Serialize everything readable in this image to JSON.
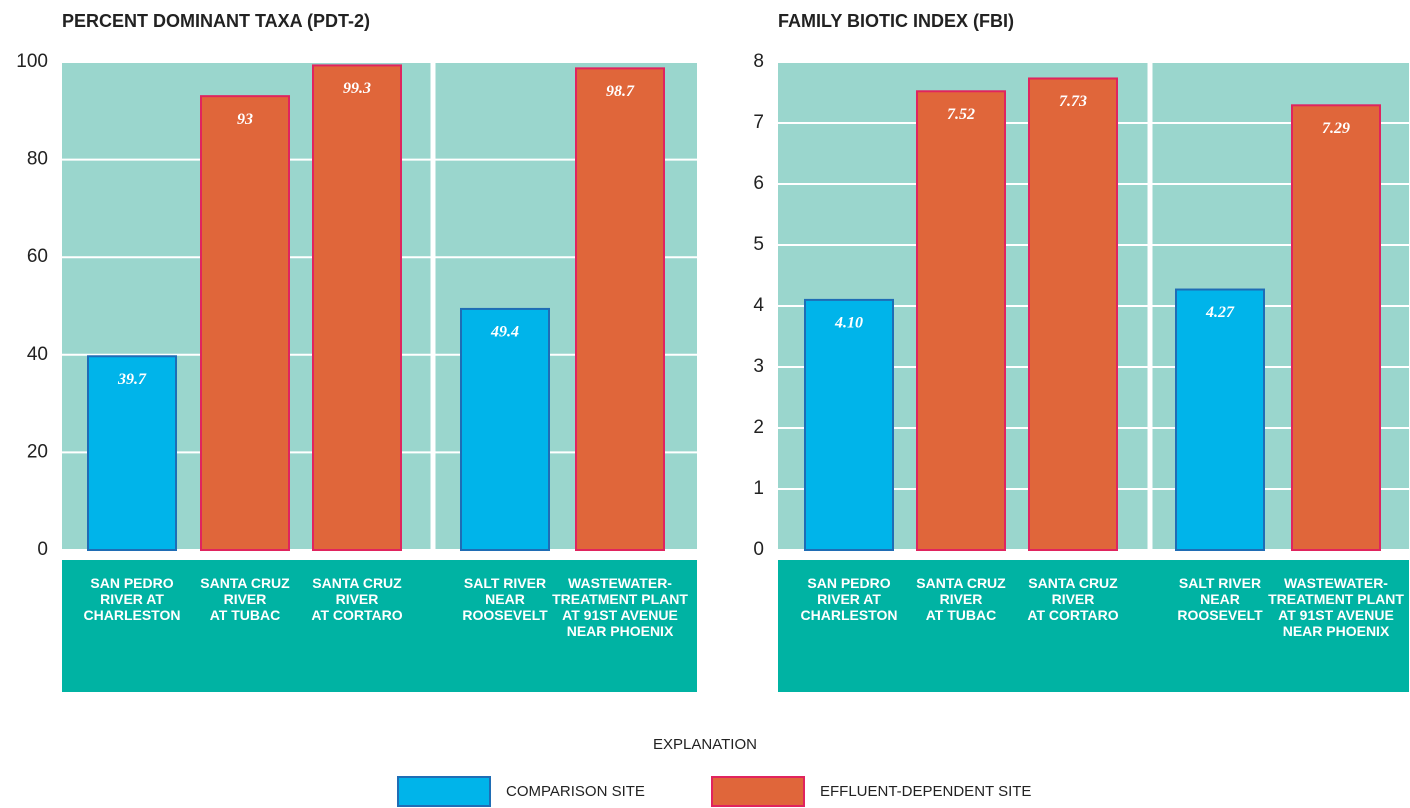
{
  "chart_data": [
    {
      "type": "bar",
      "title": "PERCENT DOMINANT TAXA (PDT-2)",
      "categories": [
        [
          "SAN PEDRO",
          "RIVER AT",
          "CHARLESTON"
        ],
        [
          "SANTA CRUZ",
          "RIVER",
          "AT TUBAC"
        ],
        [
          "SANTA CRUZ",
          "RIVER",
          "AT CORTARO"
        ],
        [
          "SALT RIVER",
          "NEAR",
          "ROOSEVELT"
        ],
        [
          "WASTEWATER-",
          "TREATMENT PLANT",
          "AT 91ST AVENUE",
          "NEAR PHOENIX"
        ]
      ],
      "values": [
        39.7,
        93,
        99.3,
        49.4,
        98.7
      ],
      "colors": [
        "#00b4ea",
        "#e0663a",
        "#e0663a",
        "#00b4ea",
        "#e0663a"
      ],
      "edgecolors": [
        "#1f6db5",
        "#e0245e",
        "#e0245e",
        "#1f6db5",
        "#e0245e"
      ],
      "ylim": [
        0,
        100
      ],
      "yticks": [
        0,
        20,
        40,
        60,
        80,
        100
      ],
      "grid": true
    },
    {
      "type": "bar",
      "title": "FAMILY BIOTIC INDEX (FBI)",
      "categories": [
        [
          "SAN PEDRO",
          "RIVER AT",
          "CHARLESTON"
        ],
        [
          "SANTA CRUZ",
          "RIVER",
          "AT TUBAC"
        ],
        [
          "SANTA CRUZ",
          "RIVER",
          "AT CORTARO"
        ],
        [
          "SALT RIVER",
          "NEAR",
          "ROOSEVELT"
        ],
        [
          "WASTEWATER-",
          "TREATMENT PLANT",
          "AT 91ST AVENUE",
          "NEAR PHOENIX"
        ]
      ],
      "values": [
        4.1,
        7.52,
        7.73,
        4.27,
        7.29
      ],
      "value_labels": [
        "4.10",
        "7.52",
        "7.73",
        "4.27",
        "7.29"
      ],
      "colors": [
        "#00b4ea",
        "#e0663a",
        "#e0663a",
        "#00b4ea",
        "#e0663a"
      ],
      "edgecolors": [
        "#1f6db5",
        "#e0245e",
        "#e0245e",
        "#1f6db5",
        "#e0245e"
      ],
      "ylim": [
        0,
        8
      ],
      "yticks": [
        0,
        1,
        2,
        3,
        4,
        5,
        6,
        7,
        8
      ],
      "grid": true
    }
  ],
  "legend": {
    "title": "EXPLANATION",
    "items": [
      {
        "name": "COMPARISON SITE",
        "color": "#00b4ea",
        "edgecolor": "#1f6db5"
      },
      {
        "name": "EFFLUENT-DEPENDENT SITE",
        "color": "#e0663a",
        "edgecolor": "#e0245e"
      }
    ]
  }
}
